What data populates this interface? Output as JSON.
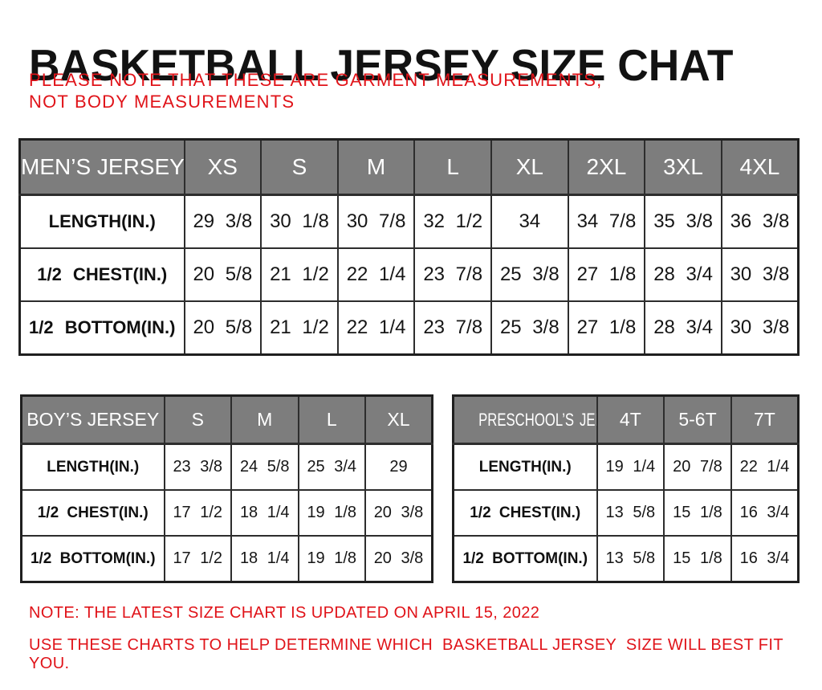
{
  "title": "BASKETBALL JERSEY SIZE CHAT",
  "subtitle": "PLEASE NOTE THAT THESE ARE GARMENT MEASUREMENTS, NOT BODY MEASUREMENTS",
  "notes": [
    "NOTE: THE LATEST SIZE CHART IS UPDATED ON APRIL 15, 2022",
    "USE THESE CHARTS TO HELP DETERMINE WHICH  BASKETBALL JERSEY  SIZE WILL BEST FIT YOU."
  ],
  "colors": {
    "accent_red": "#e01319",
    "header_gray": "#7d7d7d",
    "header_text": "#ffffff",
    "border_dark": "#2d2d2d"
  },
  "tables": {
    "mens": {
      "header_label": "MEN’S JERSEY",
      "sizes": [
        "XS",
        "S",
        "M",
        "L",
        "XL",
        "2XL",
        "3XL",
        "4XL"
      ],
      "rows": [
        {
          "label": "LENGTH(IN.)",
          "values": [
            "29 3/8",
            "30 1/8",
            "30 7/8",
            "32 1/2",
            "34",
            "34 7/8",
            "35 3/8",
            "36 3/8"
          ]
        },
        {
          "label": "1/2 CHEST(IN.)",
          "values": [
            "20 5/8",
            "21 1/2",
            "22 1/4",
            "23 7/8",
            "25 3/8",
            "27 1/8",
            "28 3/4",
            "30 3/8"
          ]
        },
        {
          "label": "1/2 BOTTOM(IN.)",
          "values": [
            "20 5/8",
            "21 1/2",
            "22 1/4",
            "23 7/8",
            "25 3/8",
            "27 1/8",
            "28 3/4",
            "30 3/8"
          ]
        }
      ]
    },
    "boys": {
      "header_label": "BOY’S JERSEY",
      "sizes": [
        "S",
        "M",
        "L",
        "XL"
      ],
      "rows": [
        {
          "label": "LENGTH(IN.)",
          "values": [
            "23 3/8",
            "24 5/8",
            "25 3/4",
            "29"
          ]
        },
        {
          "label": "1/2 CHEST(IN.)",
          "values": [
            "17 1/2",
            "18 1/4",
            "19 1/8",
            "20 3/8"
          ]
        },
        {
          "label": "1/2 BOTTOM(IN.)",
          "values": [
            "17 1/2",
            "18 1/4",
            "19 1/8",
            "20 3/8"
          ]
        }
      ]
    },
    "preschool": {
      "header_label": "PRESCHOOL’S JERSEY",
      "sizes": [
        "4T",
        "5-6T",
        "7T"
      ],
      "rows": [
        {
          "label": "LENGTH(IN.)",
          "values": [
            "19 1/4",
            "20 7/8",
            "22 1/4"
          ]
        },
        {
          "label": "1/2 CHEST(IN.)",
          "values": [
            "13 5/8",
            "15 1/8",
            "16 3/4"
          ]
        },
        {
          "label": "1/2 BOTTOM(IN.)",
          "values": [
            "13 5/8",
            "15 1/8",
            "16 3/4"
          ]
        }
      ]
    }
  }
}
